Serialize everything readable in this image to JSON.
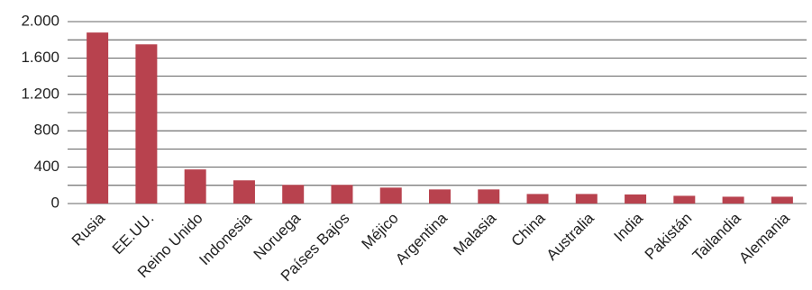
{
  "chart_data": {
    "type": "bar",
    "categories": [
      "Rusia",
      "EE.UU.",
      "Reino Unido",
      "Indonesia",
      "Noruega",
      "Países Bajos",
      "Méjico",
      "Argentina",
      "Malasia",
      "China",
      "Australia",
      "India",
      "Pakistán",
      "Tailandia",
      "Alemania"
    ],
    "values": [
      1880,
      1750,
      375,
      255,
      205,
      205,
      175,
      155,
      155,
      105,
      105,
      100,
      85,
      75,
      75
    ],
    "color": "#b8424e",
    "ylim": [
      0,
      2000
    ],
    "yticks": [
      0,
      400,
      800,
      {
        "value": 1200,
        "label": "1.200"
      },
      {
        "value": 1600,
        "label": "1.600"
      },
      {
        "value": 2000,
        "label": "2.000"
      }
    ],
    "yticks_minor": [
      200,
      600,
      1000,
      1400,
      1800
    ],
    "grid": true
  }
}
